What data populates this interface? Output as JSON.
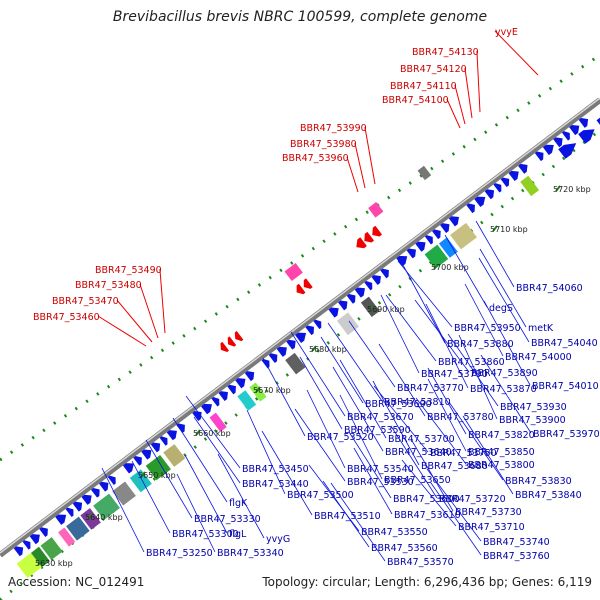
{
  "header": {
    "title": "Brevibacillus brevis NBRC 100599, complete genome"
  },
  "footer": {
    "accession": "Accession: NC_012491",
    "summary": "Topology: circular; Length: 6,296,436 bp; Genes: 6,119"
  },
  "colors": {
    "backbone": "#8c8c8c",
    "forward_gene": "#0a14e0",
    "reverse_gene": "#f00000",
    "blue_label": "#0000aa",
    "red_label": "#cc0000",
    "marker_dot": "#1a8a1a"
  },
  "scale": {
    "ticks": [
      "5630 kbp",
      "5640 kbp",
      "5650 kbp",
      "5660 kbp",
      "5670 kbp",
      "5680 kbp",
      "5690 kbp",
      "5700 kbp",
      "5710 kbp",
      "5720 kbp"
    ]
  },
  "labels_top_red": [
    "yvyE",
    "BBR47_54130",
    "BBR47_54120",
    "BBR47_54110",
    "BBR47_54100",
    "BBR47_53990",
    "BBR47_53980",
    "BBR47_53960",
    "BBR47_53490",
    "BBR47_53480",
    "BBR47_53470",
    "BBR47_53460"
  ],
  "labels_bottom_blue": [
    "BBR47_54060",
    "degS",
    "metK",
    "BBR47_54040",
    "BBR47_53950",
    "BBR47_54000",
    "BBR47_53880",
    "BBR47_54010",
    "BBR47_53860",
    "BBR47_53890",
    "BBR47_53790",
    "BBR47_53870",
    "BBR47_53770",
    "BBR47_53930",
    "BBR47_53810",
    "BBR47_53900",
    "BBR47_53690",
    "BBR47_53780",
    "BBR47_53970",
    "BBR47_53670",
    "BBR47_53820",
    "BBR47_53590",
    "BBR47_53700",
    "BBR47_53640",
    "BBR47_53750",
    "BBR47_53850",
    "BBR47_53520",
    "BBR47_53680",
    "BBR47_53800",
    "BBR47_53450",
    "BBR47_53540",
    "BBR47_53650",
    "BBR47_53440",
    "BBR47_53530",
    "BBR47_53830",
    "BBR47_53500",
    "BBR47_53600",
    "BBR47_53720",
    "BBR47_53840",
    "flgK",
    "BBR47_53610",
    "BBR47_53730",
    "BBR47_53330",
    "BBR47_53510",
    "BBR47_53710",
    "BBR47_53300",
    "flgL",
    "yvyG",
    "BBR47_53550",
    "BBR47_53740",
    "BBR47_53340",
    "BBR47_53250",
    "BBR47_53560",
    "BBR47_53760",
    "BBR47_53570"
  ]
}
